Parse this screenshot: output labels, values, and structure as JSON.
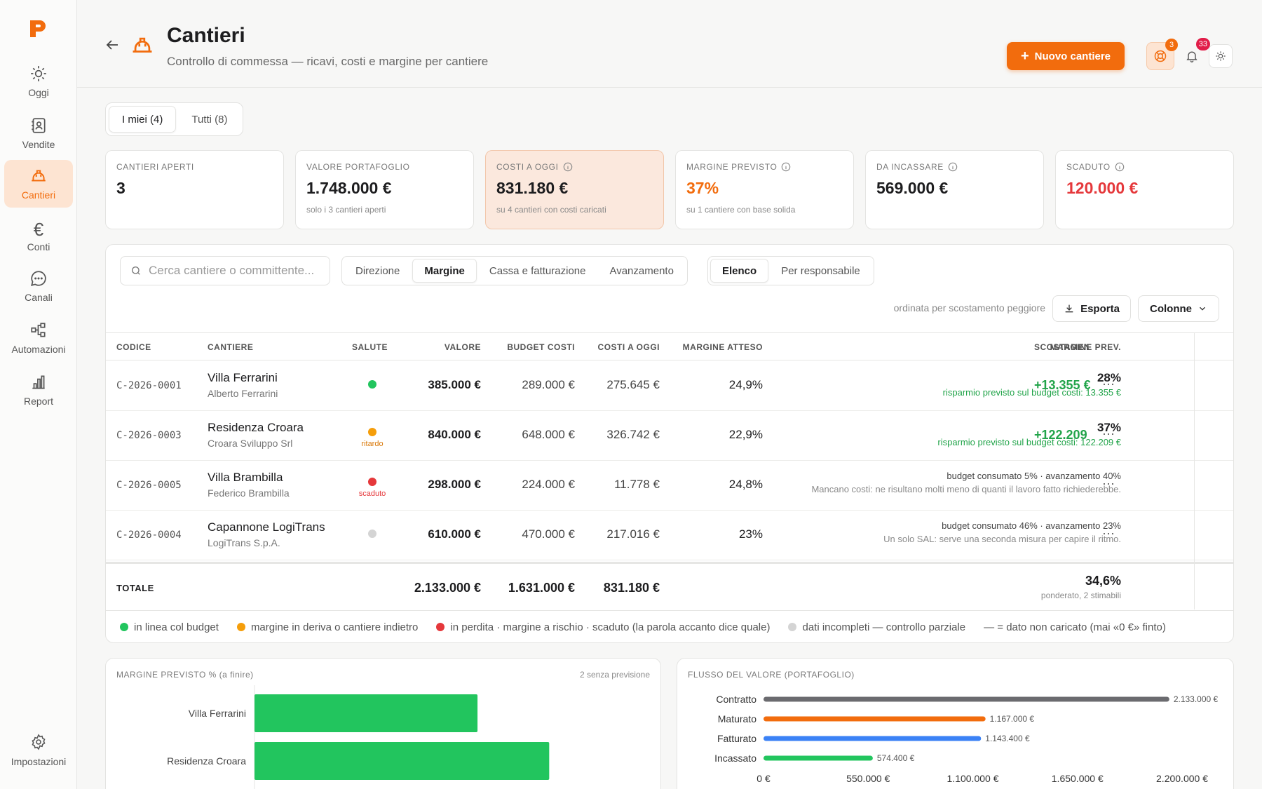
{
  "sidebar": {
    "items": [
      {
        "label": "Oggi",
        "icon": "sun-icon"
      },
      {
        "label": "Vendite",
        "icon": "contact-book-icon"
      },
      {
        "label": "Cantieri",
        "icon": "hard-hat-icon",
        "active": true
      },
      {
        "label": "Conti",
        "icon": "euro-icon"
      },
      {
        "label": "Canali",
        "icon": "chat-icon"
      },
      {
        "label": "Automazioni",
        "icon": "workflow-icon"
      },
      {
        "label": "Report",
        "icon": "bar-chart-icon"
      }
    ],
    "settings_label": "Impostazioni"
  },
  "header": {
    "title": "Cantieri",
    "subtitle": "Controllo di commessa — ricavi, costi e margine per cantiere",
    "new_button": "Nuovo cantiere",
    "support_badge": "3",
    "notifications_badge": "33",
    "accent": "#f26c0d"
  },
  "scope_tabs": [
    "I miei (4)",
    "Tutti (8)"
  ],
  "kpis": [
    {
      "label": "CANTIERI APERTI",
      "value": "3",
      "sub": "",
      "info": false
    },
    {
      "label": "VALORE PORTAFOGLIO",
      "value": "1.748.000 €",
      "sub": "solo i 3 cantieri aperti",
      "info": false
    },
    {
      "label": "COSTI A OGGI",
      "value": "831.180 €",
      "sub": "su 4 cantieri con costi caricati",
      "info": true
    },
    {
      "label": "MARGINE PREVISTO",
      "value": "37%",
      "sub": "su 1 cantiere con base solida",
      "info": true
    },
    {
      "label": "DA INCASSARE",
      "value": "569.000 €",
      "sub": "",
      "info": true
    },
    {
      "label": "SCADUTO",
      "value": "120.000 €",
      "sub": "",
      "info": true
    }
  ],
  "toolbar": {
    "search_placeholder": "Cerca cantiere o committente...",
    "views": [
      "Direzione",
      "Margine",
      "Cassa e fatturazione",
      "Avanzamento"
    ],
    "layouts": [
      "Elenco",
      "Per responsabile"
    ],
    "sort_note": "ordinata per scostamento peggiore",
    "export_label": "Esporta",
    "columns_label": "Colonne"
  },
  "table": {
    "headers": [
      "CODICE",
      "CANTIERE",
      "SALUTE",
      "VALORE",
      "BUDGET COSTI",
      "COSTI A OGGI",
      "MARGINE ATTESO",
      "MARGINE PREV.",
      "SCOSTAMENTO"
    ],
    "rows": [
      {
        "code": "C-2026-0001",
        "name": "Villa Ferrarini",
        "client": "Alberto Ferrarini",
        "health_color": "#22c55e",
        "health_word": "",
        "valore": "385.000 €",
        "budget": "289.000 €",
        "costi": "275.645 €",
        "atteso": "24,9%",
        "prev": "28%",
        "note1": "risparmio previsto sul budget costi: 13.355 €",
        "note2": "",
        "scost": "+13.355 €"
      },
      {
        "code": "C-2026-0003",
        "name": "Residenza Croara",
        "client": "Croara Sviluppo Srl",
        "health_color": "#f59e0b",
        "health_word": "ritardo",
        "valore": "840.000 €",
        "budget": "648.000 €",
        "costi": "326.742 €",
        "atteso": "22,9%",
        "prev": "37%",
        "note1": "risparmio previsto sul budget costi: 122.209 €",
        "note2": "",
        "scost": "+122.209 €"
      },
      {
        "code": "C-2026-0005",
        "name": "Villa Brambilla",
        "client": "Federico Brambilla",
        "health_color": "#e5383b",
        "health_word": "scaduto",
        "valore": "298.000 €",
        "budget": "224.000 €",
        "costi": "11.778 €",
        "atteso": "24,8%",
        "prev": "",
        "note1": "budget consumato 5% · avanzamento 40%",
        "note2": "Mancano costi: ne risultano molti meno di quanti il lavoro fatto richiederebbe.",
        "scost": ""
      },
      {
        "code": "C-2026-0004",
        "name": "Capannone LogiTrans",
        "client": "LogiTrans S.p.A.",
        "health_color": "#d4d4d4",
        "health_word": "",
        "valore": "610.000 €",
        "budget": "470.000 €",
        "costi": "217.016 €",
        "atteso": "23%",
        "prev": "",
        "note1": "budget consumato 46% · avanzamento 23%",
        "note2": "Un solo SAL: serve una seconda misura per capire il ritmo.",
        "scost": ""
      }
    ],
    "total": {
      "label": "TOTALE",
      "valore": "2.133.000 €",
      "budget": "1.631.000 €",
      "costi": "831.180 €",
      "prev": "34,6%",
      "prev_note": "ponderato, 2 stimabili"
    }
  },
  "legend": [
    {
      "color": "#22c55e",
      "text": "in linea col budget"
    },
    {
      "color": "#f59e0b",
      "text": "margine in deriva o cantiere indietro"
    },
    {
      "color": "#e5383b",
      "text": "in perdita · margine a rischio · scaduto (la parola accanto dice quale)"
    },
    {
      "color": "#d4d4d4",
      "text": "dati incompleti — controllo parziale"
    },
    {
      "color": "",
      "text": "— = dato non caricato (mai «0 €» finto)"
    }
  ],
  "chart_data": [
    {
      "type": "bar",
      "orientation": "horizontal",
      "title": "MARGINE PREVISTO % (a finire)",
      "note": "2 senza previsione",
      "categories": [
        "Villa Ferrarini",
        "Residenza Croara"
      ],
      "values": [
        28,
        37
      ],
      "color": "#22c55e",
      "xlim": [
        0,
        50
      ]
    },
    {
      "type": "bar",
      "orientation": "horizontal",
      "title": "FLUSSO DEL VALORE (PORTAFOGLIO)",
      "categories": [
        "Contratto",
        "Maturato",
        "Fatturato",
        "Incassato"
      ],
      "values": [
        2133000,
        1167000,
        1143400,
        574400
      ],
      "value_labels": [
        "2.133.000 €",
        "1.167.000 €",
        "1.143.400 €",
        "574.400 €"
      ],
      "colors": [
        "#6b6b6f",
        "#f26c0d",
        "#3b82f6",
        "#22c55e"
      ],
      "xticks": [
        "0 €",
        "550.000 €",
        "1.100.000 €",
        "1.650.000 €",
        "2.200.000 €"
      ],
      "xlim": [
        0,
        2200000
      ]
    }
  ]
}
